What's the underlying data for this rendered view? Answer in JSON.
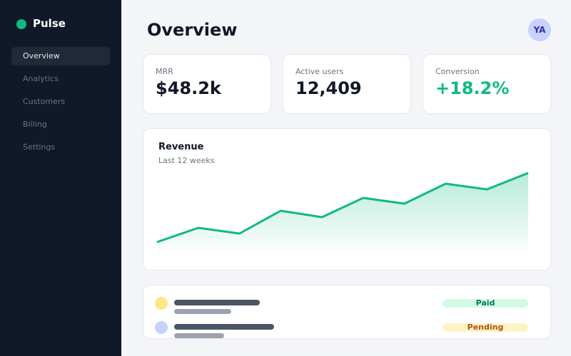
{
  "sidebar": {
    "brand": "Pulse",
    "nav": [
      "Overview",
      "Analytics",
      "Customers",
      "Billing",
      "Settings"
    ],
    "active": 0
  },
  "header": {
    "title": "Overview",
    "avatar": "YA"
  },
  "kpis": [
    {
      "label": "MRR",
      "value": "$48.2k"
    },
    {
      "label": "Active users",
      "value": "12,409"
    },
    {
      "label": "Conversion",
      "value": "+18.2%"
    }
  ],
  "chart_data": {
    "type": "area",
    "title": "Revenue",
    "subtitle": "Last 12 weeks",
    "values": [
      20,
      40,
      32,
      64,
      55,
      82,
      74,
      102,
      94,
      117
    ],
    "color": "#10b981"
  },
  "rows": [
    {
      "status": "Paid"
    },
    {
      "status": "Pending"
    }
  ]
}
